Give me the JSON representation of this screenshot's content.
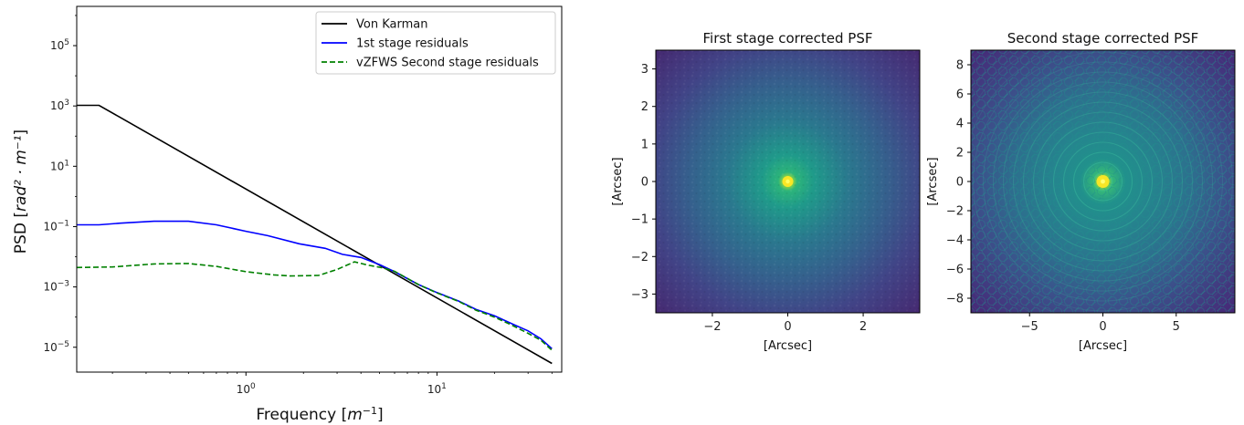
{
  "chart_data": [
    {
      "type": "line",
      "title": "",
      "xlabel": "Frequency",
      "xlabel_unit_base": "m",
      "xlabel_unit_exp": "−1",
      "ylabel_prefix": "PSD",
      "ylabel_unit": "rad² · m⁻¹",
      "xscale": "log",
      "yscale": "log",
      "xlim": [
        0.13,
        45
      ],
      "ylim": [
        1.5e-06,
        2000000.0
      ],
      "xticks": [
        {
          "base": "10",
          "exp": "0",
          "value": 1
        },
        {
          "base": "10",
          "exp": "1",
          "value": 10
        }
      ],
      "yticks": [
        {
          "base": "10",
          "exp": "−5",
          "value": 1e-05
        },
        {
          "base": "10",
          "exp": "−3",
          "value": 0.001
        },
        {
          "base": "10",
          "exp": "−1",
          "value": 0.1
        },
        {
          "base": "10",
          "exp": "1",
          "value": 10
        },
        {
          "base": "10",
          "exp": "3",
          "value": 1000
        },
        {
          "base": "10",
          "exp": "5",
          "value": 100000
        }
      ],
      "legend_position": "top-right",
      "series": [
        {
          "name": "Von Karman",
          "color": "#000000",
          "dash": "solid",
          "points": [
            [
              0.13,
              1050
            ],
            [
              0.17,
              1050
            ],
            [
              40,
              2.9e-06
            ]
          ]
        },
        {
          "name": "1st stage residuals",
          "color": "#0000ff",
          "dash": "solid",
          "points": [
            [
              0.13,
              0.115
            ],
            [
              0.17,
              0.115
            ],
            [
              0.22,
              0.13
            ],
            [
              0.33,
              0.15
            ],
            [
              0.5,
              0.15
            ],
            [
              0.7,
              0.115
            ],
            [
              1.0,
              0.07
            ],
            [
              1.3,
              0.05
            ],
            [
              1.9,
              0.027
            ],
            [
              2.6,
              0.019
            ],
            [
              3.2,
              0.012
            ],
            [
              4.0,
              0.0095
            ],
            [
              5.0,
              0.0055
            ],
            [
              6.0,
              0.0032
            ],
            [
              8.0,
              0.0012
            ],
            [
              10.0,
              0.00065
            ],
            [
              13.0,
              0.00034
            ],
            [
              16.0,
              0.00018
            ],
            [
              20.0,
              0.00011
            ],
            [
              25.0,
              5.8e-05
            ],
            [
              30.0,
              3.5e-05
            ],
            [
              35.0,
              1.9e-05
            ],
            [
              40.0,
              9e-06
            ]
          ]
        },
        {
          "name": "vZFWS Second stage residuals",
          "color": "#008000",
          "dash": "dashed",
          "points": [
            [
              0.13,
              0.0044
            ],
            [
              0.2,
              0.0046
            ],
            [
              0.33,
              0.0058
            ],
            [
              0.5,
              0.006
            ],
            [
              0.7,
              0.0048
            ],
            [
              1.0,
              0.0032
            ],
            [
              1.4,
              0.0025
            ],
            [
              1.7,
              0.0023
            ],
            [
              2.4,
              0.0024
            ],
            [
              3.0,
              0.0038
            ],
            [
              3.7,
              0.0068
            ],
            [
              4.4,
              0.0052
            ],
            [
              5.2,
              0.0043
            ],
            [
              6.0,
              0.0033
            ],
            [
              8.0,
              0.0012
            ],
            [
              10.0,
              0.00063
            ],
            [
              13.0,
              0.00033
            ],
            [
              16.0,
              0.00017
            ],
            [
              20.0,
              0.0001
            ],
            [
              25.0,
              5.2e-05
            ],
            [
              30.0,
              2.9e-05
            ],
            [
              35.0,
              1.7e-05
            ],
            [
              40.0,
              8e-06
            ]
          ]
        }
      ]
    },
    {
      "type": "heatmap",
      "title": "First stage corrected PSF",
      "xlabel": "[Arcsec]",
      "ylabel": "[Arcsec]",
      "colormap": "viridis",
      "xlim": [
        -3.5,
        3.5
      ],
      "ylim": [
        -3.5,
        3.5
      ],
      "xticks": [
        -2,
        0,
        2
      ],
      "xtick_labels": [
        "−2",
        "0",
        "2"
      ],
      "yticks": [
        -3,
        -2,
        -1,
        0,
        1,
        2,
        3
      ],
      "ytick_labels": [
        "−3",
        "−2",
        "−1",
        "0",
        "1",
        "2",
        "3"
      ],
      "peak_center": [
        0,
        0
      ]
    },
    {
      "type": "heatmap",
      "title": "Second stage corrected PSF",
      "xlabel": "[Arcsec]",
      "ylabel": "[Arcsec]",
      "colormap": "viridis",
      "xlim": [
        -9,
        9
      ],
      "ylim": [
        -9,
        9
      ],
      "xticks": [
        -5,
        0,
        5
      ],
      "xtick_labels": [
        "−5",
        "0",
        "5"
      ],
      "yticks": [
        -8,
        -6,
        -4,
        -2,
        0,
        2,
        4,
        6,
        8
      ],
      "ytick_labels": [
        "−8",
        "−6",
        "−4",
        "−2",
        "0",
        "2",
        "4",
        "6",
        "8"
      ],
      "peak_center": [
        0,
        0
      ]
    }
  ]
}
